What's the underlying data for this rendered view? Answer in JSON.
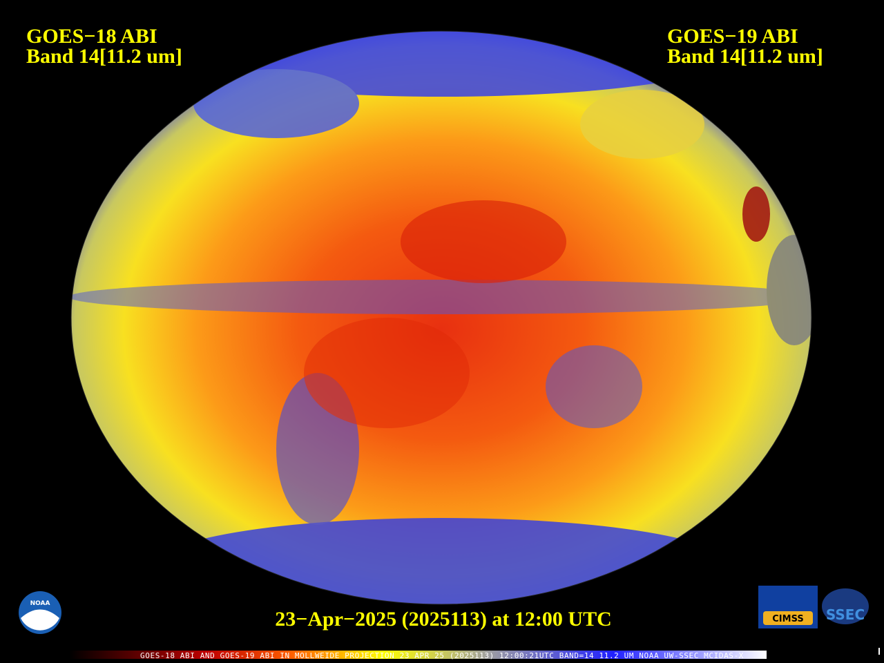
{
  "left_label": {
    "satellite": "GOES−18 ABI",
    "band": "Band 14[11.2 um]"
  },
  "right_label": {
    "satellite": "GOES−19 ABI",
    "band": "Band 14[11.2 um]"
  },
  "timestamp": "23−Apr−2025 (2025113) at 12:00 UTC",
  "footer": "GOES-18 ABI AND GOES-19 ABI IN MOLLWEIDE PROJECTION 23 APR 25 (2025113) 12:00:21UTC BAND=14 11.2 UM NOAA UW-SSEC MCIDAS-X",
  "logos": {
    "noaa": "NOAA",
    "cimss": "CIMSS",
    "ssec": "SSEC"
  }
}
